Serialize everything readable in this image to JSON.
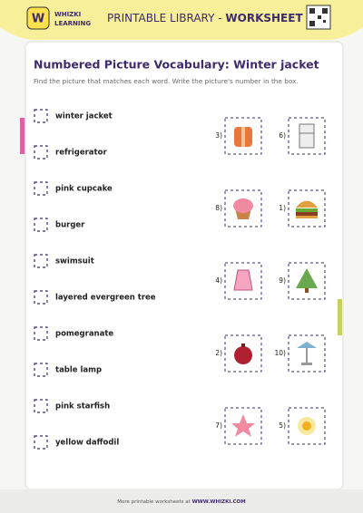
{
  "header": {
    "logo_top": "WHIZKI",
    "logo_bottom": "LEARNING",
    "title_prefix": "PRINTABLE LIBRARY - ",
    "title_strong": "WORKSHEET"
  },
  "worksheet": {
    "title": "Numbered Picture Vocabulary: Winter jacket",
    "instructions": "Find the picture that matches each word. Write the picture's number in the box.",
    "words": [
      "winter jacket",
      "refrigerator",
      "pink cupcake",
      "burger",
      "swimsuit",
      "layered evergreen tree",
      "pomegranate",
      "table lamp",
      "pink starfish",
      "yellow daffodil"
    ],
    "pictures": [
      "3)",
      "6)",
      "8)",
      "1)",
      "4)",
      "9)",
      "2)",
      "10)",
      "7)",
      "5)"
    ]
  },
  "footer": {
    "text": "More printable worksheets at ",
    "link": "WWW.WHIZKI.COM"
  }
}
